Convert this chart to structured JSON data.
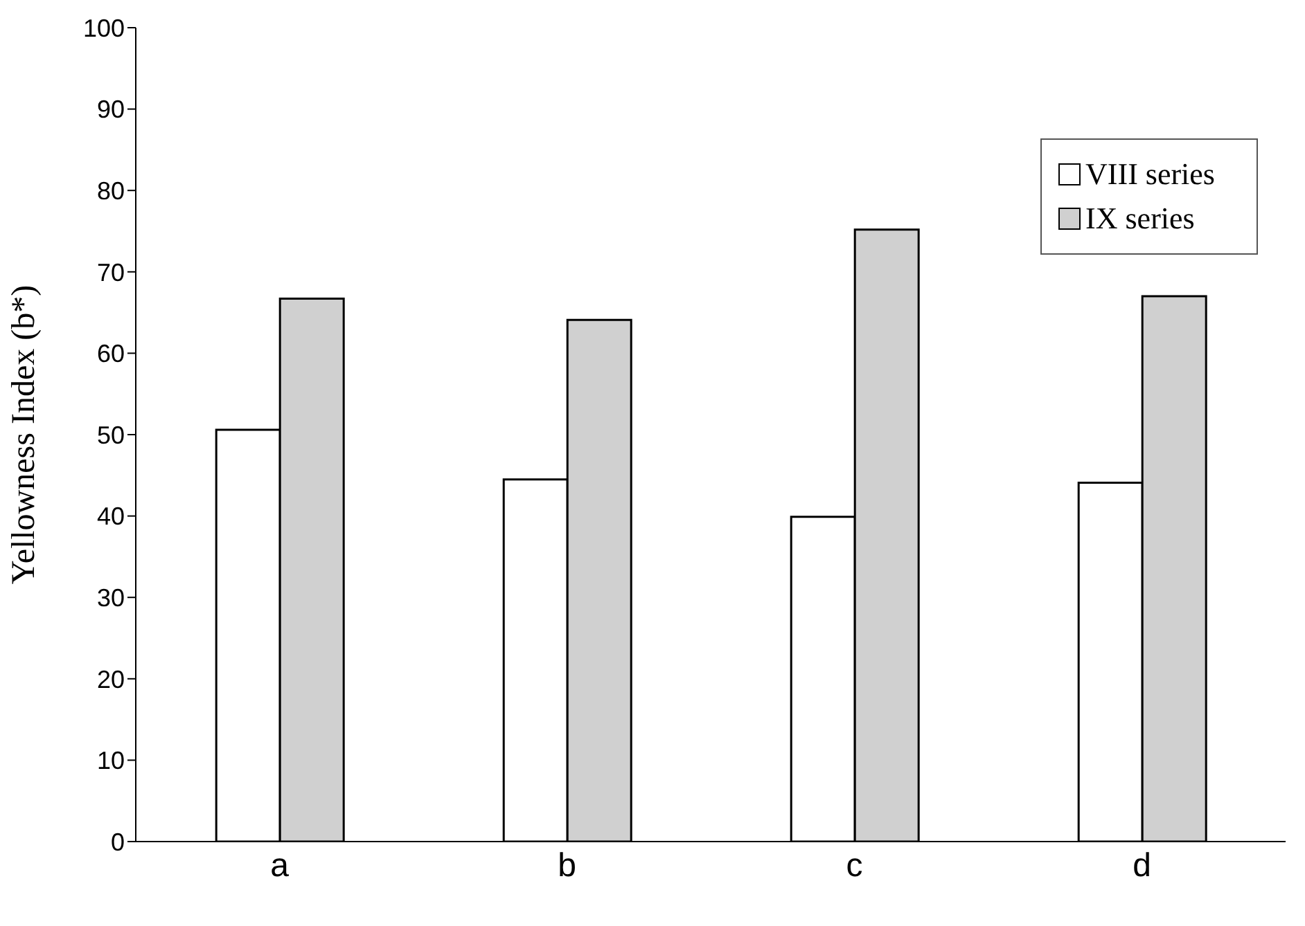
{
  "chart_data": {
    "type": "bar",
    "ylabel": "Yellowness Index (b*)",
    "categories": [
      "a",
      "b",
      "c",
      "d"
    ],
    "series": [
      {
        "name": "VIII series",
        "color": "#ffffff",
        "values": [
          50.6,
          44.5,
          39.9,
          44.1
        ]
      },
      {
        "name": "IX series",
        "color": "#d0d0d0",
        "values": [
          66.7,
          64.1,
          75.2,
          67.0
        ]
      }
    ],
    "ylim": [
      0,
      100
    ],
    "yticks": [
      0,
      10,
      20,
      30,
      40,
      50,
      60,
      70,
      80,
      90,
      100
    ],
    "legend": "top right"
  }
}
